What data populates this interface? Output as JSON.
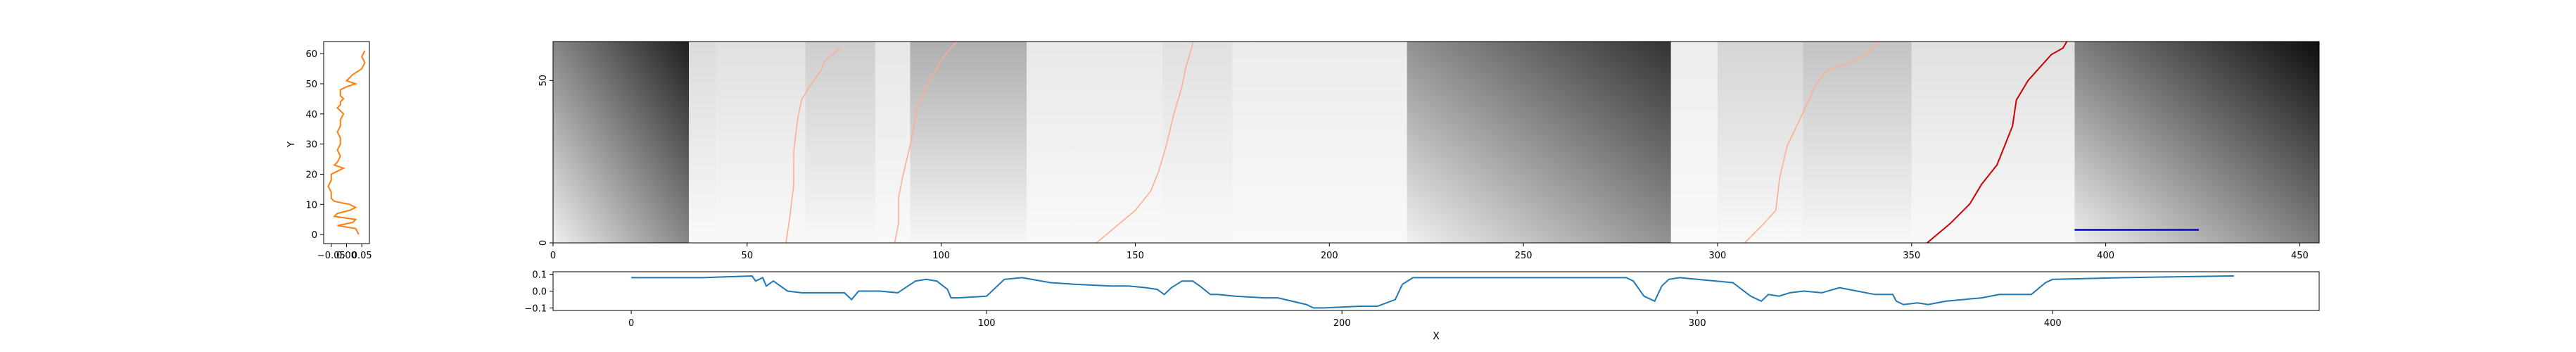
{
  "figure": {
    "colors": {
      "left_series": "#ff7f0e",
      "bottom_series": "#1f77b4",
      "scale_bar": "#0000cc",
      "paths_dark": "#cc0000",
      "paths_light": "#fcae91"
    }
  },
  "chart_data": [
    {
      "panel": "left-profile",
      "type": "line",
      "xlabel": "",
      "ylabel": "Y",
      "xlim": [
        -0.075,
        0.075
      ],
      "ylim": [
        -3,
        64
      ],
      "x_ticks": [
        -0.05,
        0.0,
        0.05
      ],
      "x_tick_labels": [
        "−0.05",
        "0.00",
        "0.05"
      ],
      "y_ticks": [
        0,
        10,
        20,
        30,
        40,
        50,
        60
      ],
      "series": [
        {
          "x": [
            0.04,
            0.03,
            -0.03,
            0.02,
            0.03,
            -0.04,
            -0.03,
            0.01,
            0.03,
            0.01,
            -0.04,
            -0.05,
            -0.05,
            -0.06,
            -0.05,
            -0.05,
            -0.03,
            -0.01,
            -0.04,
            -0.03,
            -0.02,
            -0.03,
            -0.02,
            -0.02,
            -0.03,
            -0.02,
            -0.02,
            -0.01,
            -0.03,
            -0.02,
            -0.02,
            -0.01,
            -0.02,
            -0.02,
            -0.02,
            0.0,
            0.03,
            0.0,
            0.02,
            0.05,
            0.06,
            0.05,
            0.06
          ],
          "y": [
            0,
            2,
            3,
            4,
            5,
            6,
            7,
            8,
            9,
            10,
            11,
            12,
            14,
            16,
            18,
            20,
            21,
            22,
            23,
            24,
            26,
            28,
            30,
            32,
            34,
            36,
            38,
            40,
            42,
            43,
            44,
            45,
            46,
            47,
            48,
            49,
            50,
            51,
            53,
            55,
            57,
            59,
            61
          ]
        }
      ]
    },
    {
      "panel": "main-heatmap",
      "type": "heatmap",
      "xlabel": "",
      "ylabel": "",
      "xlim": [
        0,
        455
      ],
      "ylim": [
        0,
        62
      ],
      "x_ticks": [
        0,
        50,
        100,
        150,
        200,
        250,
        300,
        350,
        400,
        450
      ],
      "y_ticks": [
        0,
        50
      ],
      "grid": false,
      "colormap": "greys",
      "blocks": [
        {
          "x": [
            0,
            35
          ],
          "dark": 0.88
        },
        {
          "x": [
            35,
            42
          ],
          "dark": 0.12
        },
        {
          "x": [
            42,
            65
          ],
          "dark": 0.1
        },
        {
          "x": [
            65,
            83
          ],
          "dark": 0.18
        },
        {
          "x": [
            83,
            92
          ],
          "dark": 0.08
        },
        {
          "x": [
            92,
            122
          ],
          "dark": 0.3
        },
        {
          "x": [
            122,
            157
          ],
          "dark": 0.07
        },
        {
          "x": [
            157,
            175
          ],
          "dark": 0.1
        },
        {
          "x": [
            175,
            220
          ],
          "dark": 0.06
        },
        {
          "x": [
            220,
            288
          ],
          "dark": 0.8
        },
        {
          "x": [
            288,
            300
          ],
          "dark": 0.05
        },
        {
          "x": [
            300,
            322
          ],
          "dark": 0.15
        },
        {
          "x": [
            322,
            350
          ],
          "dark": 0.22
        },
        {
          "x": [
            350,
            392
          ],
          "dark": 0.1
        },
        {
          "x": [
            392,
            455
          ],
          "dark": 0.95
        }
      ],
      "paths": [
        {
          "color": "light",
          "x": [
            60,
            61,
            62,
            62,
            63,
            64,
            66,
            69,
            70,
            74
          ],
          "y": [
            0,
            8,
            18,
            28,
            38,
            44,
            48,
            53,
            56,
            60
          ]
        },
        {
          "color": "light",
          "x": [
            88,
            89,
            89,
            90,
            92,
            94,
            96,
            99,
            101,
            104
          ],
          "y": [
            0,
            6,
            14,
            20,
            30,
            42,
            48,
            54,
            58,
            62
          ]
        },
        {
          "color": "light",
          "x": [
            140,
            145,
            150,
            154,
            156,
            158,
            160,
            162,
            163,
            165
          ],
          "y": [
            0,
            5,
            10,
            16,
            22,
            30,
            40,
            48,
            54,
            62
          ]
        },
        {
          "color": "light",
          "x": [
            307,
            312,
            315,
            316,
            318,
            322,
            325,
            328,
            335,
            338,
            342
          ],
          "y": [
            0,
            6,
            10,
            20,
            30,
            40,
            48,
            53,
            56,
            58,
            62
          ]
        },
        {
          "color": "dark",
          "x": [
            354,
            360,
            365,
            368,
            372,
            374,
            376,
            377,
            380,
            383,
            386,
            389,
            390
          ],
          "y": [
            0,
            6,
            12,
            18,
            24,
            30,
            36,
            44,
            50,
            54,
            58,
            60,
            62
          ]
        }
      ],
      "scale_bar": {
        "x": [
          392,
          424
        ],
        "y": 4
      }
    },
    {
      "panel": "bottom-profile",
      "type": "line",
      "xlabel": "X",
      "ylabel": "",
      "xlim": [
        -22,
        475
      ],
      "ylim": [
        -0.115,
        0.115
      ],
      "x_ticks": [
        0,
        100,
        200,
        300,
        400
      ],
      "y_ticks": [
        -0.1,
        0.0,
        0.1
      ],
      "y_tick_labels": [
        "−0.1",
        "0.0",
        "0.1"
      ],
      "series": [
        {
          "x": [
            0,
            20,
            34,
            35,
            37,
            38,
            40,
            42,
            44,
            48,
            55,
            60,
            62,
            64,
            70,
            75,
            80,
            83,
            86,
            89,
            90,
            92,
            100,
            105,
            110,
            118,
            125,
            135,
            140,
            145,
            148,
            150,
            152,
            155,
            158,
            160,
            163,
            165,
            170,
            178,
            182,
            190,
            192,
            195,
            205,
            210,
            215,
            217,
            220,
            230,
            250,
            270,
            280,
            282,
            285,
            288,
            290,
            292,
            295,
            300,
            310,
            315,
            318,
            320,
            323,
            326,
            330,
            335,
            340,
            345,
            350,
            355,
            356,
            358,
            362,
            365,
            370,
            380,
            385,
            390,
            394,
            398,
            400,
            420,
            450,
            451
          ],
          "y": [
            0.08,
            0.08,
            0.09,
            0.06,
            0.08,
            0.03,
            0.06,
            0.03,
            0.0,
            -0.01,
            -0.01,
            -0.01,
            -0.05,
            0.0,
            0.0,
            -0.01,
            0.06,
            0.07,
            0.06,
            0.01,
            -0.04,
            -0.04,
            -0.03,
            0.07,
            0.08,
            0.05,
            0.04,
            0.03,
            0.03,
            0.02,
            0.01,
            -0.02,
            0.02,
            0.06,
            0.06,
            0.03,
            -0.02,
            -0.02,
            -0.03,
            -0.04,
            -0.04,
            -0.08,
            -0.1,
            -0.1,
            -0.09,
            -0.09,
            -0.05,
            0.04,
            0.08,
            0.08,
            0.08,
            0.08,
            0.08,
            0.06,
            -0.03,
            -0.06,
            0.03,
            0.07,
            0.08,
            0.07,
            0.05,
            -0.03,
            -0.06,
            -0.02,
            -0.03,
            -0.01,
            0.0,
            -0.01,
            0.02,
            0.0,
            -0.02,
            -0.02,
            -0.06,
            -0.08,
            -0.07,
            -0.08,
            -0.06,
            -0.04,
            -0.02,
            -0.02,
            -0.02,
            0.05,
            0.07,
            0.08,
            0.09,
            0.09
          ]
        }
      ]
    }
  ]
}
